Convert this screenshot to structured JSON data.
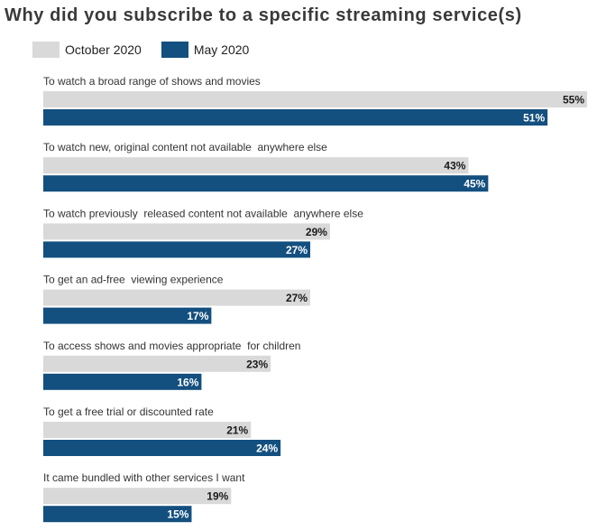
{
  "chart_data": {
    "type": "bar",
    "orientation": "horizontal",
    "title": "Why did you subscribe to a specific streaming service(s)",
    "categories": [
      "To watch a broad range of shows and movies",
      "To watch new, original content not available  anywhere else",
      "To watch previously  released content not available  anywhere else",
      "To get an ad-free  viewing experience",
      "To access shows and movies appropriate  for children",
      "To get a free trial or discounted rate",
      "It came bundled with other services I want"
    ],
    "series": [
      {
        "name": "October 2020",
        "color": "#d9d9d9",
        "values": [
          55,
          43,
          29,
          27,
          23,
          21,
          19
        ],
        "labels": [
          "55%",
          "43%",
          "29%",
          "27%",
          "23%",
          "21%",
          "19%"
        ]
      },
      {
        "name": "May 2020",
        "color": "#134f7f",
        "values": [
          51,
          45,
          27,
          17,
          16,
          24,
          15
        ],
        "labels": [
          "51%",
          "45%",
          "27%",
          "17%",
          "16%",
          "24%",
          "15%"
        ]
      }
    ],
    "xlim": [
      0,
      55
    ],
    "unit": "%",
    "legend": "top-left",
    "grid": false
  }
}
